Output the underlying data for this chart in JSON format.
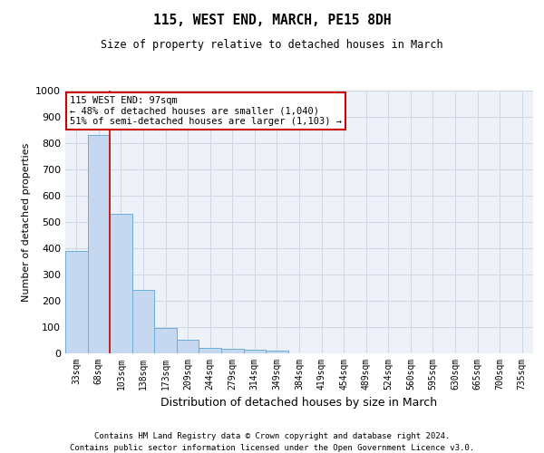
{
  "title1": "115, WEST END, MARCH, PE15 8DH",
  "title2": "Size of property relative to detached houses in March",
  "xlabel": "Distribution of detached houses by size in March",
  "ylabel": "Number of detached properties",
  "bar_color": "#c5d8ef",
  "bar_edge_color": "#6baed6",
  "categories": [
    "33sqm",
    "68sqm",
    "103sqm",
    "138sqm",
    "173sqm",
    "209sqm",
    "244sqm",
    "279sqm",
    "314sqm",
    "349sqm",
    "384sqm",
    "419sqm",
    "454sqm",
    "489sqm",
    "524sqm",
    "560sqm",
    "595sqm",
    "630sqm",
    "665sqm",
    "700sqm",
    "735sqm"
  ],
  "values": [
    390,
    830,
    530,
    241,
    96,
    52,
    20,
    18,
    15,
    10,
    0,
    0,
    0,
    0,
    0,
    0,
    0,
    0,
    0,
    0,
    0
  ],
  "ylim": [
    0,
    1000
  ],
  "yticks": [
    0,
    100,
    200,
    300,
    400,
    500,
    600,
    700,
    800,
    900,
    1000
  ],
  "red_line_x": 1.5,
  "annotation_line1": "115 WEST END: 97sqm",
  "annotation_line2": "← 48% of detached houses are smaller (1,040)",
  "annotation_line3": "51% of semi-detached houses are larger (1,103) →",
  "annotation_box_color": "#ffffff",
  "annotation_border_color": "#cc0000",
  "footer1": "Contains HM Land Registry data © Crown copyright and database right 2024.",
  "footer2": "Contains public sector information licensed under the Open Government Licence v3.0.",
  "grid_color": "#d0d8e8",
  "background_color": "#eef2f8"
}
